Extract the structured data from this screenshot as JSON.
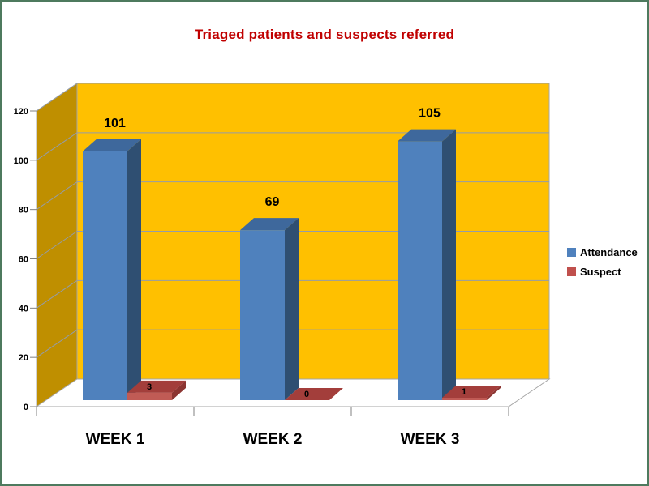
{
  "window": {
    "background": "#FFFFFF",
    "border_color": "#4E7A5E"
  },
  "title": {
    "text": "Triaged patients and suspects referred",
    "color": "#C00000"
  },
  "chart_data": {
    "type": "bar",
    "projection": "3d-clustered-column",
    "title": "Triaged patients and suspects referred",
    "categories": [
      "WEEK 1",
      "WEEK 2",
      "WEEK 3"
    ],
    "series": [
      {
        "name": "Attendance",
        "values": [
          101,
          69,
          105
        ],
        "color": "#4F81BD",
        "color_top": "#3E689C",
        "color_side": "#2F4F72",
        "legend_color": "#4F81BD"
      },
      {
        "name": "Suspect",
        "values": [
          3,
          0,
          1
        ],
        "color": "#C05B55",
        "color_top": "#A33E3B",
        "color_side": "#8C3532",
        "legend_color": "#C0504D"
      }
    ],
    "ylim": [
      0,
      120
    ],
    "yticks": [
      0,
      20,
      40,
      60,
      80,
      100,
      120
    ],
    "grid": true,
    "data_labels": true,
    "legend_position": "right",
    "xlabel": "",
    "ylabel": "",
    "colors": {
      "plot_bg": "#FFC000",
      "side_wall": "#BF8F00",
      "floor": "#FFFFFF",
      "wall_outline": "#A6A6A6",
      "gridline": "#949CA8",
      "tick": "#808080",
      "axis_text": "#000000",
      "data_label": "#000000",
      "category_text": "#000000"
    }
  }
}
